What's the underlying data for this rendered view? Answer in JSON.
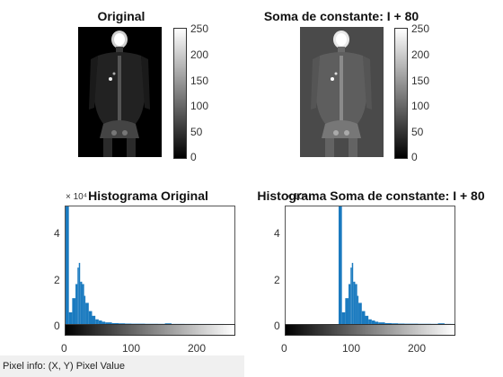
{
  "panels": {
    "original": {
      "title": "Original"
    },
    "added": {
      "title": "Soma de constante: I + 80"
    },
    "hist_original": {
      "title": "Histograma Original",
      "exponent": "× 10⁴"
    },
    "hist_added": {
      "title": "Histograma Soma de constante: I + 80",
      "exponent": "× 10⁴"
    }
  },
  "colorbar_ticks": [
    "250",
    "200",
    "150",
    "100",
    "50",
    "0"
  ],
  "hist_x_ticks": [
    "0",
    "100",
    "200"
  ],
  "hist_y_ticks": [
    "4",
    "2",
    "0"
  ],
  "status": {
    "text": "Pixel info: (X, Y)  Pixel Value"
  },
  "colors": {
    "bar": "#1a7abf",
    "axis": "#555555"
  },
  "chart_data": [
    {
      "type": "bar",
      "title": "Histograma Original",
      "x": [
        0,
        5,
        10,
        15,
        18,
        20,
        22,
        25,
        28,
        30,
        35,
        40,
        45,
        50,
        55,
        60,
        70,
        80,
        90,
        100,
        120,
        140,
        150,
        160,
        180,
        200,
        220,
        240,
        255
      ],
      "values": [
        50000,
        5000,
        11000,
        17000,
        24000,
        26000,
        18000,
        17000,
        12000,
        9000,
        5500,
        3500,
        2000,
        1500,
        1000,
        700,
        400,
        300,
        200,
        150,
        100,
        80,
        300,
        60,
        40,
        30,
        20,
        10,
        20
      ],
      "xlim": [
        0,
        255
      ],
      "ylim": [
        0,
        50000
      ],
      "xlabel": "",
      "ylabel": ""
    },
    {
      "type": "bar",
      "title": "Histograma Soma de constante: I + 80",
      "x": [
        80,
        85,
        90,
        95,
        98,
        100,
        102,
        105,
        108,
        110,
        115,
        120,
        125,
        130,
        135,
        140,
        150,
        160,
        170,
        180,
        200,
        220,
        230,
        240,
        250,
        255
      ],
      "values": [
        50000,
        5000,
        11000,
        17000,
        24000,
        26000,
        18000,
        17000,
        12000,
        9000,
        5500,
        3500,
        2000,
        1500,
        1000,
        700,
        400,
        300,
        200,
        150,
        100,
        80,
        300,
        60,
        40,
        20
      ],
      "xlim": [
        0,
        255
      ],
      "ylim": [
        0,
        50000
      ],
      "xlabel": "",
      "ylabel": ""
    }
  ]
}
